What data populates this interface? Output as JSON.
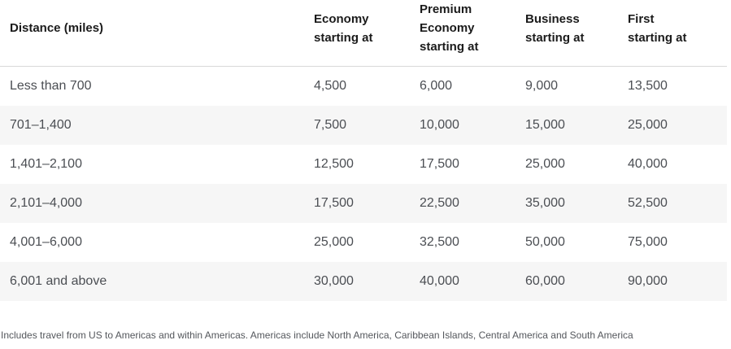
{
  "chart_data": {
    "type": "table",
    "columns": [
      {
        "label": "Distance (miles)",
        "lines": [
          "Distance (miles)"
        ]
      },
      {
        "label": "Economy starting at",
        "lines": [
          "Economy",
          "starting at"
        ]
      },
      {
        "label": "Premium Economy starting at",
        "lines": [
          "Premium",
          "Economy",
          "starting at"
        ]
      },
      {
        "label": "Business starting at",
        "lines": [
          "Business",
          "starting at"
        ]
      },
      {
        "label": "First starting at",
        "lines": [
          "First",
          "starting at"
        ]
      }
    ],
    "rows": [
      [
        "Less than 700",
        "4,500",
        "6,000",
        "9,000",
        "13,500"
      ],
      [
        "701–1,400",
        "7,500",
        "10,000",
        "15,000",
        "25,000"
      ],
      [
        "1,401–2,100",
        "12,500",
        "17,500",
        "25,000",
        "40,000"
      ],
      [
        "2,101–4,000",
        "17,500",
        "22,500",
        "35,000",
        "52,500"
      ],
      [
        "4,001–6,000",
        "25,000",
        "32,500",
        "50,000",
        "75,000"
      ],
      [
        "6,001 and above",
        "30,000",
        "40,000",
        "60,000",
        "90,000"
      ]
    ],
    "categories": [
      "Less than 700",
      "701–1,400",
      "1,401–2,100",
      "2,101–4,000",
      "4,001–6,000",
      "6,001 and above"
    ],
    "series": [
      {
        "name": "Economy starting at",
        "values": [
          4500,
          7500,
          12500,
          17500,
          25000,
          30000
        ]
      },
      {
        "name": "Premium Economy starting at",
        "values": [
          6000,
          10000,
          17500,
          22500,
          32500,
          40000
        ]
      },
      {
        "name": "Business starting at",
        "values": [
          9000,
          15000,
          25000,
          35000,
          50000,
          60000
        ]
      },
      {
        "name": "First starting at",
        "values": [
          13500,
          25000,
          40000,
          52500,
          75000,
          90000
        ]
      }
    ],
    "footnote": "Includes travel from US to Americas and within Americas. Americas include North America, Caribbean Islands, Central America and South America"
  },
  "colors": {
    "stripe": "#f6f6f6",
    "divider": "#d8d8d8",
    "header_text": "#1b1b1b",
    "body_text": "#4b4e53",
    "footnote_text": "#54575c"
  }
}
